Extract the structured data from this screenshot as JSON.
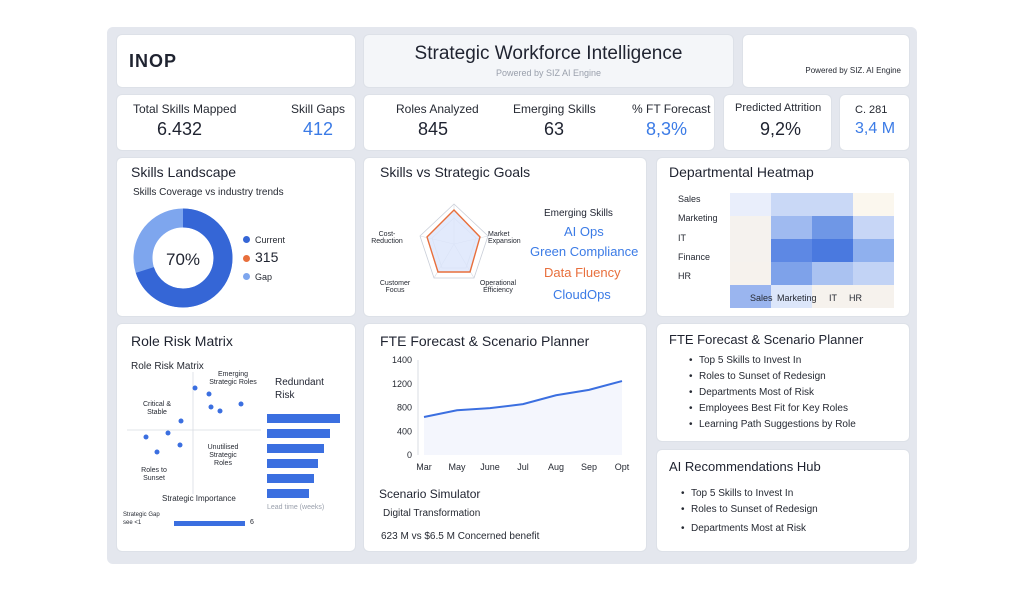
{
  "header": {
    "logo": "INOP",
    "title": "Strategic Workforce Intelligence",
    "subtitle": "Powered by SIZ AI Engine",
    "powered_by": "Powered by SIZ. AI Engine"
  },
  "stats": {
    "total_skills_label": "Total Skills Mapped",
    "total_skills_value": "6.432",
    "skill_gaps_label": "Skill Gaps",
    "skill_gaps_value": "412",
    "roles_label": "Roles Analyzed",
    "roles_value": "845",
    "emerging_label": "Emerging Skills",
    "emerging_value": "63",
    "ft_forecast_label": "% FT Forecast",
    "ft_forecast_value": "8,3%",
    "attrition_label": "Predicted Attrition",
    "attrition_value": "9,2%",
    "c_label": "C. 281",
    "c_value": "3,4 M"
  },
  "skills_landscape": {
    "title": "Skills Landscape",
    "subtitle": "Skills Coverage vs industry trends",
    "donut_center": "70%",
    "donut_fraction": 0.7,
    "legend": [
      {
        "label": "Current",
        "color": "#3566d6"
      },
      {
        "label": "315",
        "color": "#e86f3c"
      },
      {
        "label": "Gap",
        "color": "#7ea6ee"
      }
    ]
  },
  "skills_goals": {
    "title": "Skills vs Strategic Goals",
    "radar_axes": [
      "Cost-Reduction",
      "Market Expansion",
      "Operational Efficiency",
      "Customer Focus"
    ],
    "emerging_title": "Emerging Skills",
    "emerging": [
      {
        "label": "AI Ops",
        "color": "#3b7be6"
      },
      {
        "label": "Green Compliance",
        "color": "#3b7be6"
      },
      {
        "label": "Data Fluency",
        "color": "#e86f3c"
      },
      {
        "label": "CloudOps",
        "color": "#3b7be6"
      }
    ]
  },
  "heatmap": {
    "title": "Departmental Heatmap",
    "rows": [
      "Sales",
      "Marketing",
      "IT",
      "Finance",
      "HR"
    ],
    "cols": [
      "Sales",
      "Marketing",
      "IT",
      "HR"
    ],
    "colors": [
      [
        "#e9eefb",
        "#c9d8f6",
        "#c9d8f6",
        "#fbf7ee"
      ],
      [
        "#f5f2ee",
        "#9fbaf0",
        "#6f97e6",
        "#c7d6f6"
      ],
      [
        "#f5f2ee",
        "#5d88e4",
        "#4a79df",
        "#8fb0ee"
      ],
      [
        "#f6f2ed",
        "#7ea2ea",
        "#aac2f1",
        "#c2d3f5"
      ],
      [
        "#9ab5ef",
        "#dce6fa",
        "#f6f2ed",
        "#f6f2ed"
      ]
    ]
  },
  "role_risk": {
    "title": "Role Risk Matrix",
    "subtitle": "Role Risk Matrix",
    "quad_emerging": "Emerging Strategic Roles",
    "quad_critical": "Critical & Stable",
    "quad_unutilised": "Unutilised Strategic Roles",
    "quad_sunset": "Roles to Sunset",
    "x_axis": "Strategic Importance",
    "redundant_title": "Redundant Risk",
    "lead_time": "Lead time (weeks)",
    "gap_label": "Strategic Gap see <1",
    "gap_value": "6"
  },
  "fte_forecast": {
    "title": "FTE Forecast & Scenario Planner",
    "scenario_title": "Scenario Simulator",
    "scenario_name": "Digital Transformation",
    "scenario_result": "623 M vs $6.5 M Concerned benefit"
  },
  "chart_data": {
    "type": "line",
    "categories": [
      "Mar",
      "May",
      "June",
      "Jul",
      "Aug",
      "Sep",
      "Opt"
    ],
    "series": [
      {
        "values": [
          560,
          660,
          690,
          750,
          880,
          960,
          1090
        ]
      }
    ],
    "yticks": [
      "1400",
      "1200",
      "800",
      "400",
      "0"
    ],
    "ylim": [
      0,
      1400
    ],
    "ylabel": "",
    "xlabel": ""
  },
  "fte_list": {
    "title": "FTE Forecast & Scenario Planner",
    "items": [
      "Top 5 Skills to Invest In",
      "Roles to Sunset of Redesign",
      "Departments Most of Risk",
      "Employees Best Fit for Key Roles",
      "Learning Path Suggestions by Role"
    ]
  },
  "ai_hub": {
    "title": "AI Recommendations Hub",
    "items": [
      "Top 5 Skills to Invest In",
      "Roles to Sunset of Redesign",
      "Departments Most at Risk"
    ]
  }
}
